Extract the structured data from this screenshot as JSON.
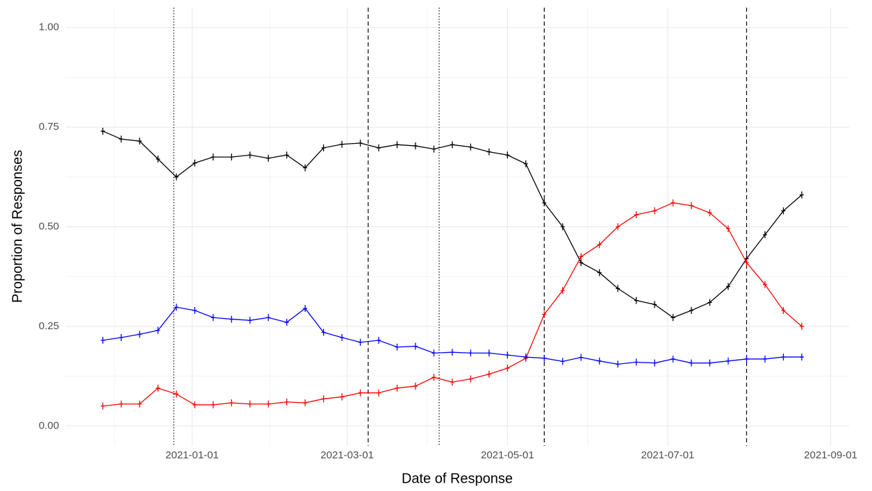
{
  "chart_data": {
    "type": "line",
    "x_label": "Date of Response",
    "y_label": "Proportion of Responses",
    "x": [
      "2020-11-28",
      "2020-12-05",
      "2020-12-12",
      "2020-12-19",
      "2020-12-26",
      "2021-01-02",
      "2021-01-09",
      "2021-01-16",
      "2021-01-23",
      "2021-01-30",
      "2021-02-06",
      "2021-02-13",
      "2021-02-20",
      "2021-02-27",
      "2021-03-06",
      "2021-03-13",
      "2021-03-20",
      "2021-03-27",
      "2021-04-03",
      "2021-04-10",
      "2021-04-17",
      "2021-04-24",
      "2021-05-01",
      "2021-05-08",
      "2021-05-15",
      "2021-05-22",
      "2021-05-29",
      "2021-06-05",
      "2021-06-12",
      "2021-06-19",
      "2021-06-26",
      "2021-07-03",
      "2021-07-10",
      "2021-07-17",
      "2021-07-24",
      "2021-07-31",
      "2021-08-07",
      "2021-08-14",
      "2021-08-21"
    ],
    "series": [
      {
        "color": "#000000",
        "values": [
          0.74,
          0.72,
          0.715,
          0.67,
          0.625,
          0.66,
          0.675,
          0.675,
          0.68,
          0.672,
          0.68,
          0.648,
          0.698,
          0.707,
          0.71,
          0.698,
          0.706,
          0.703,
          0.695,
          0.706,
          0.7,
          0.688,
          0.68,
          0.658,
          0.56,
          0.5,
          0.41,
          0.385,
          0.345,
          0.315,
          0.305,
          0.272,
          0.29,
          0.31,
          0.35,
          0.42,
          0.48,
          0.54,
          0.58
        ]
      },
      {
        "color": "#ff0000",
        "values": [
          0.05,
          0.055,
          0.055,
          0.095,
          0.08,
          0.053,
          0.053,
          0.058,
          0.055,
          0.055,
          0.06,
          0.058,
          0.068,
          0.073,
          0.083,
          0.083,
          0.095,
          0.1,
          0.122,
          0.11,
          0.118,
          0.13,
          0.145,
          0.17,
          0.28,
          0.34,
          0.425,
          0.455,
          0.5,
          0.53,
          0.54,
          0.56,
          0.553,
          0.535,
          0.495,
          0.41,
          0.355,
          0.29,
          0.25
        ]
      },
      {
        "color": "#0000ff",
        "values": [
          0.215,
          0.222,
          0.23,
          0.24,
          0.298,
          0.29,
          0.272,
          0.268,
          0.265,
          0.272,
          0.26,
          0.295,
          0.235,
          0.222,
          0.21,
          0.215,
          0.198,
          0.2,
          0.183,
          0.185,
          0.183,
          0.183,
          0.178,
          0.173,
          0.17,
          0.162,
          0.172,
          0.163,
          0.155,
          0.16,
          0.158,
          0.168,
          0.158,
          0.158,
          0.163,
          0.168,
          0.168,
          0.173,
          0.173
        ]
      }
    ],
    "vlines": [
      {
        "x": "2020-12-25",
        "linetype": "dotted"
      },
      {
        "x": "2021-03-09",
        "linetype": "dashed"
      },
      {
        "x": "2021-04-05",
        "linetype": "dotted"
      },
      {
        "x": "2021-05-15",
        "linetype": "dashed"
      },
      {
        "x": "2021-07-31",
        "linetype": "dashed"
      }
    ],
    "xlim": [
      "2020-11-14",
      "2021-09-08"
    ],
    "xticks": [
      "2021-01-01",
      "2021-03-01",
      "2021-05-01",
      "2021-07-01",
      "2021-09-01"
    ],
    "ylim": [
      -0.05,
      1.05
    ],
    "yticks": [
      {
        "value": 0,
        "label": "0.00"
      },
      {
        "value": 0.25,
        "label": "0.25"
      },
      {
        "value": 0.5,
        "label": "0.50"
      },
      {
        "value": 0.75,
        "label": "0.75"
      },
      {
        "value": 1,
        "label": "1.00"
      }
    ],
    "grid": true
  }
}
